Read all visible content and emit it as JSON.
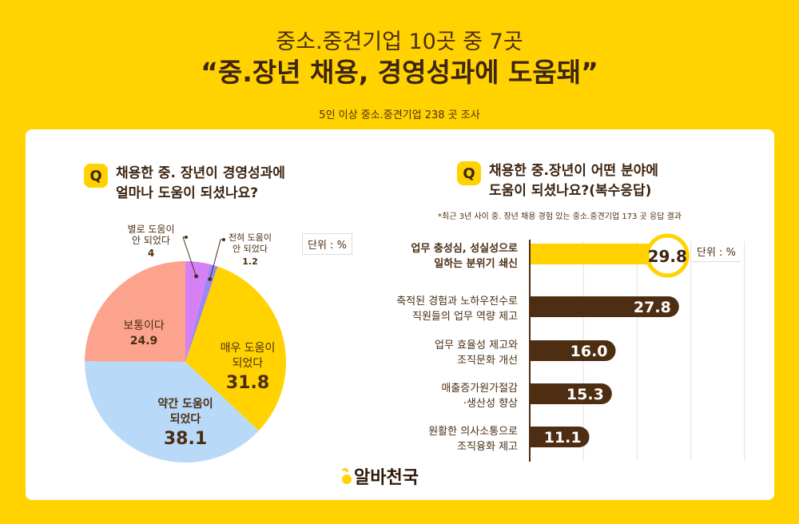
{
  "header": {
    "line1": "중소.중견기업 10곳 중 7곳",
    "line2": "“중.장년 채용, 경영성과에 도움돼”",
    "sub": "5인 이상 중소.중견기업 238 곳 조사"
  },
  "left": {
    "q_badge": "Q",
    "q1": "채용한 중. 장년이 경영성과에",
    "q2": "얼마나 도움이 되셨나요?",
    "unit": "단위 : %"
  },
  "right": {
    "q_badge": "Q",
    "q1": "채용한 중.장년이 어떤 분야에",
    "q2": "도움이 되셨나요?(복수응답)",
    "note": "*최근 3년 사이 중. 장년 채용 경험 있는 중소.중견기업 173 곳 응답 결과",
    "unit": "단위 : %"
  },
  "logo": "알바천국",
  "chart_data": [
    {
      "type": "pie",
      "start": "12 o'clock",
      "direction": "clockwise",
      "slices": [
        {
          "label": [
            "별로 도움이",
            "안 되었다"
          ],
          "value": 4,
          "display": "4",
          "color": "#d580f5"
        },
        {
          "label": [
            "전혀 도움이",
            "안 되었다"
          ],
          "value": 1.2,
          "display": "1.2",
          "color": "#9d86f7"
        },
        {
          "label": [
            "매우 도움이",
            "되었다"
          ],
          "value": 31.8,
          "display": "31.8",
          "color": "#ffd200"
        },
        {
          "label": [
            "약간 도움이",
            "되었다"
          ],
          "value": 38.1,
          "display": "38.1",
          "color": "#b8d9f8"
        },
        {
          "label": [
            "보통이다"
          ],
          "value": 24.9,
          "display": "24.9",
          "color": "#fca38d"
        }
      ]
    },
    {
      "type": "bar",
      "orientation": "horizontal",
      "xlim": [
        0,
        40
      ],
      "grid": true,
      "categories": [
        [
          "업무 충성심, 성실성으로",
          "일하는 분위기 쇄신"
        ],
        [
          "축적된 경험과 노하우전수로",
          "직원들의 업무 역량 제고"
        ],
        [
          "업무  효율성 제고와",
          "조직문화 개선"
        ],
        [
          "매출증가원가절감",
          "·생산성 향상"
        ],
        [
          "원활한 의사소통으로",
          "조직융화 제고"
        ]
      ],
      "values": [
        29.8,
        27.8,
        16.0,
        15.3,
        11.1
      ],
      "labels": [
        "29.8",
        "27.8",
        "16.0",
        "15.3",
        "11.1"
      ],
      "colors": {
        "highlight": "#ffd200",
        "bar": "#4e2e12"
      }
    }
  ]
}
